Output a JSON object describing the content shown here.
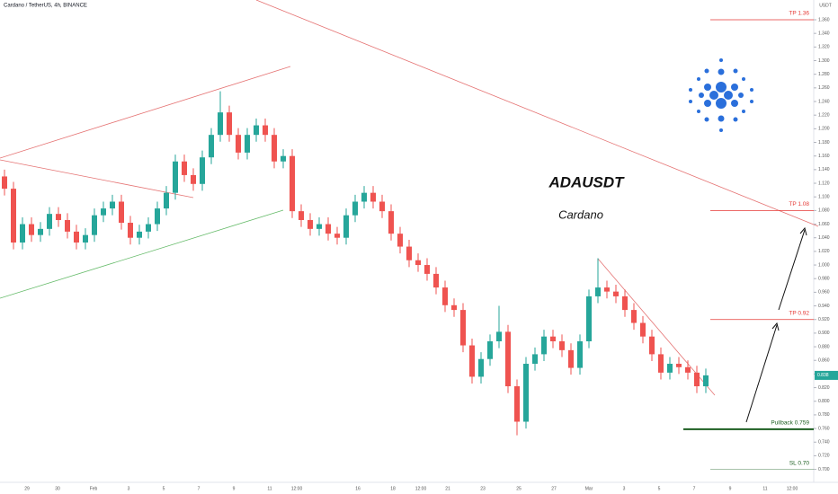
{
  "chart_data": {
    "type": "candlestick",
    "header": "Cardano / TetherUS, 4h, BINANCE",
    "title": "ADAUSDT",
    "subtitle": "Cardano",
    "currency": "USDT",
    "up_color": "#26a69a",
    "down_color": "#ef5350",
    "open": [
      1.13,
      1.112,
      1.033,
      1.06,
      1.044,
      1.053,
      1.075,
      1.066,
      1.049,
      1.033,
      1.044,
      1.073,
      1.083,
      1.093,
      1.062,
      1.04,
      1.049,
      1.06,
      1.083,
      1.106,
      1.152,
      1.132,
      1.119,
      1.158,
      1.191,
      1.224,
      1.191,
      1.165,
      1.191,
      1.205,
      1.191,
      1.152,
      1.16,
      1.079,
      1.066,
      1.053,
      1.06,
      1.046,
      1.04,
      1.073,
      1.093,
      1.106,
      1.093,
      1.079,
      1.046,
      1.027,
      1.007,
      1.0,
      0.987,
      0.967,
      0.941,
      0.934,
      0.882,
      0.836,
      0.862,
      0.888,
      0.902,
      0.822,
      0.77,
      0.855,
      0.869,
      0.895,
      0.888,
      0.875,
      0.849,
      0.888,
      0.954,
      0.967,
      0.961,
      0.954,
      0.934,
      0.915,
      0.895,
      0.869,
      0.842,
      0.855,
      0.85,
      0.842,
      0.822
    ],
    "high": [
      1.14,
      1.122,
      1.07,
      1.07,
      1.063,
      1.085,
      1.085,
      1.076,
      1.059,
      1.054,
      1.083,
      1.093,
      1.103,
      1.103,
      1.072,
      1.059,
      1.07,
      1.093,
      1.116,
      1.162,
      1.162,
      1.142,
      1.168,
      1.201,
      1.255,
      1.234,
      1.201,
      1.201,
      1.215,
      1.215,
      1.201,
      1.17,
      1.17,
      1.089,
      1.076,
      1.07,
      1.07,
      1.056,
      1.083,
      1.103,
      1.116,
      1.116,
      1.103,
      1.089,
      1.056,
      1.037,
      1.017,
      1.01,
      0.997,
      0.977,
      0.951,
      0.944,
      0.892,
      0.872,
      0.898,
      0.94,
      0.912,
      0.832,
      0.865,
      0.879,
      0.905,
      0.905,
      0.898,
      0.885,
      0.898,
      0.964,
      1.01,
      0.977,
      0.971,
      0.964,
      0.944,
      0.925,
      0.905,
      0.879,
      0.865,
      0.865,
      0.86,
      0.852,
      0.848
    ],
    "low": [
      1.102,
      1.023,
      1.023,
      1.034,
      1.034,
      1.043,
      1.056,
      1.039,
      1.023,
      1.023,
      1.034,
      1.063,
      1.073,
      1.052,
      1.03,
      1.03,
      1.039,
      1.05,
      1.073,
      1.096,
      1.122,
      1.109,
      1.109,
      1.148,
      1.181,
      1.181,
      1.155,
      1.155,
      1.181,
      1.181,
      1.142,
      1.142,
      1.069,
      1.056,
      1.043,
      1.043,
      1.036,
      1.03,
      1.03,
      1.063,
      1.083,
      1.083,
      1.069,
      1.036,
      1.017,
      0.997,
      0.99,
      0.977,
      0.957,
      0.931,
      0.924,
      0.872,
      0.826,
      0.826,
      0.852,
      0.878,
      0.812,
      0.75,
      0.76,
      0.845,
      0.859,
      0.878,
      0.865,
      0.839,
      0.839,
      0.878,
      0.944,
      0.951,
      0.944,
      0.924,
      0.905,
      0.885,
      0.859,
      0.832,
      0.832,
      0.84,
      0.832,
      0.812,
      0.812
    ],
    "close": [
      1.112,
      1.033,
      1.06,
      1.044,
      1.053,
      1.075,
      1.066,
      1.049,
      1.033,
      1.044,
      1.073,
      1.083,
      1.093,
      1.062,
      1.04,
      1.049,
      1.06,
      1.083,
      1.106,
      1.152,
      1.132,
      1.119,
      1.158,
      1.191,
      1.224,
      1.191,
      1.165,
      1.191,
      1.205,
      1.191,
      1.152,
      1.16,
      1.079,
      1.066,
      1.053,
      1.06,
      1.046,
      1.04,
      1.073,
      1.093,
      1.106,
      1.093,
      1.079,
      1.046,
      1.027,
      1.007,
      1.0,
      0.987,
      0.967,
      0.941,
      0.934,
      0.882,
      0.836,
      0.862,
      0.888,
      0.902,
      0.822,
      0.77,
      0.855,
      0.869,
      0.895,
      0.888,
      0.875,
      0.849,
      0.888,
      0.954,
      0.967,
      0.961,
      0.954,
      0.934,
      0.915,
      0.895,
      0.869,
      0.842,
      0.855,
      0.85,
      0.842,
      0.822,
      0.838
    ],
    "xticks": [
      "29",
      "30",
      "Feb",
      "3",
      "5",
      "7",
      "9",
      "11",
      "12:00",
      "16",
      "18",
      "12:00",
      "21",
      "23",
      "25",
      "27",
      "Mar",
      "3",
      "5",
      "7",
      "9",
      "11",
      "12:00"
    ],
    "ylim": [
      0.681,
      1.389
    ],
    "yticks": [
      {
        "value": 0.7,
        "label": "0.700"
      },
      {
        "value": 0.72,
        "label": "0.720"
      },
      {
        "value": 0.74,
        "label": "0.740"
      },
      {
        "value": 0.76,
        "label": "0.760"
      },
      {
        "value": 0.78,
        "label": "0.780"
      },
      {
        "value": 0.8,
        "label": "0.800"
      },
      {
        "value": 0.82,
        "label": "0.820"
      },
      {
        "value": 0.84,
        "label": "0.840"
      },
      {
        "value": 0.86,
        "label": "0.860"
      },
      {
        "value": 0.88,
        "label": "0.880"
      },
      {
        "value": 0.9,
        "label": "0.900"
      },
      {
        "value": 0.92,
        "label": "0.920"
      },
      {
        "value": 0.94,
        "label": "0.940"
      },
      {
        "value": 0.96,
        "label": "0.960"
      },
      {
        "value": 0.98,
        "label": "0.980"
      },
      {
        "value": 1.0,
        "label": "1.000"
      },
      {
        "value": 1.02,
        "label": "1.020"
      },
      {
        "value": 1.04,
        "label": "1.040"
      },
      {
        "value": 1.06,
        "label": "1.060"
      },
      {
        "value": 1.08,
        "label": "1.080"
      },
      {
        "value": 1.1,
        "label": "1.100"
      },
      {
        "value": 1.12,
        "label": "1.120"
      },
      {
        "value": 1.14,
        "label": "1.140"
      },
      {
        "value": 1.16,
        "label": "1.160"
      },
      {
        "value": 1.18,
        "label": "1.180"
      },
      {
        "value": 1.2,
        "label": "1.200"
      },
      {
        "value": 1.22,
        "label": "1.220"
      },
      {
        "value": 1.24,
        "label": "1.240"
      },
      {
        "value": 1.26,
        "label": "1.260"
      },
      {
        "value": 1.28,
        "label": "1.280"
      },
      {
        "value": 1.3,
        "label": "1.300"
      },
      {
        "value": 1.32,
        "label": "1.320"
      },
      {
        "value": 1.34,
        "label": "1.340"
      },
      {
        "value": 1.36,
        "label": "1.360"
      }
    ],
    "levels": [
      {
        "label": "TP 1.36",
        "value": 1.36,
        "color": "#e53935"
      },
      {
        "label": "TP 1.08",
        "value": 1.08,
        "color": "#e53935"
      },
      {
        "label": "TP 0.92",
        "value": 0.92,
        "color": "#e53935"
      },
      {
        "label": "Pullback 0.759",
        "value": 0.759,
        "color": "#1b5e20"
      },
      {
        "label": "SL 0.70",
        "value": 0.7,
        "color": "#1b5e20"
      }
    ]
  }
}
